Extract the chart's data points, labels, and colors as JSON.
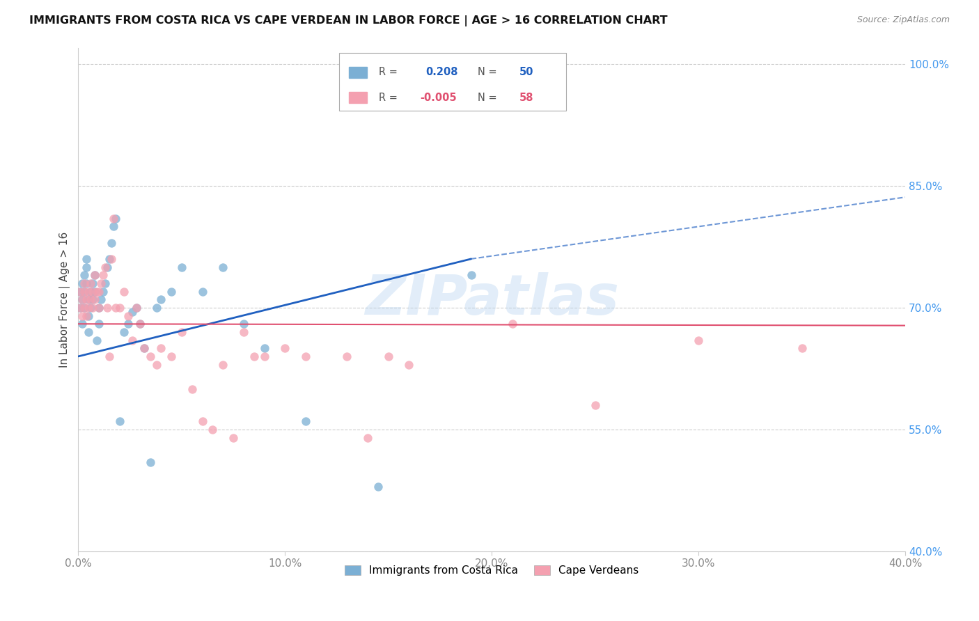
{
  "title": "IMMIGRANTS FROM COSTA RICA VS CAPE VERDEAN IN LABOR FORCE | AGE > 16 CORRELATION CHART",
  "source": "Source: ZipAtlas.com",
  "ylabel": "In Labor Force | Age > 16",
  "xlim": [
    0.0,
    0.4
  ],
  "ylim": [
    0.4,
    1.02
  ],
  "ytick_labels": [
    "40.0%",
    "55.0%",
    "70.0%",
    "85.0%",
    "100.0%"
  ],
  "ytick_values": [
    0.4,
    0.55,
    0.7,
    0.85,
    1.0
  ],
  "xtick_labels": [
    "0.0%",
    "10.0%",
    "20.0%",
    "30.0%",
    "40.0%"
  ],
  "xtick_values": [
    0.0,
    0.1,
    0.2,
    0.3,
    0.4
  ],
  "costa_rica_R": 0.208,
  "costa_rica_N": 50,
  "cape_verde_R": -0.005,
  "cape_verde_N": 58,
  "costa_rica_color": "#7bafd4",
  "cape_verde_color": "#f4a0b0",
  "trend_costa_rica_color": "#2060c0",
  "trend_cape_verde_color": "#e05070",
  "background_color": "#ffffff",
  "grid_color": "#cccccc",
  "watermark": "ZIPatlas",
  "costa_rica_x": [
    0.001,
    0.001,
    0.002,
    0.002,
    0.002,
    0.003,
    0.003,
    0.003,
    0.004,
    0.004,
    0.004,
    0.005,
    0.005,
    0.005,
    0.006,
    0.006,
    0.007,
    0.007,
    0.008,
    0.008,
    0.009,
    0.01,
    0.01,
    0.011,
    0.012,
    0.013,
    0.014,
    0.015,
    0.016,
    0.017,
    0.018,
    0.02,
    0.022,
    0.024,
    0.026,
    0.028,
    0.03,
    0.032,
    0.035,
    0.038,
    0.04,
    0.045,
    0.05,
    0.06,
    0.07,
    0.08,
    0.09,
    0.11,
    0.145,
    0.19
  ],
  "costa_rica_y": [
    0.72,
    0.7,
    0.73,
    0.71,
    0.68,
    0.74,
    0.72,
    0.7,
    0.75,
    0.73,
    0.76,
    0.71,
    0.69,
    0.67,
    0.72,
    0.7,
    0.73,
    0.71,
    0.74,
    0.72,
    0.66,
    0.68,
    0.7,
    0.71,
    0.72,
    0.73,
    0.75,
    0.76,
    0.78,
    0.8,
    0.81,
    0.56,
    0.67,
    0.68,
    0.695,
    0.7,
    0.68,
    0.65,
    0.51,
    0.7,
    0.71,
    0.72,
    0.75,
    0.72,
    0.75,
    0.68,
    0.65,
    0.56,
    0.48,
    0.74
  ],
  "cape_verde_x": [
    0.001,
    0.001,
    0.002,
    0.002,
    0.003,
    0.003,
    0.003,
    0.004,
    0.004,
    0.005,
    0.005,
    0.006,
    0.006,
    0.007,
    0.007,
    0.008,
    0.008,
    0.009,
    0.01,
    0.01,
    0.011,
    0.012,
    0.013,
    0.014,
    0.015,
    0.016,
    0.017,
    0.018,
    0.02,
    0.022,
    0.024,
    0.026,
    0.028,
    0.03,
    0.032,
    0.035,
    0.038,
    0.04,
    0.045,
    0.05,
    0.055,
    0.06,
    0.065,
    0.07,
    0.075,
    0.08,
    0.085,
    0.09,
    0.1,
    0.11,
    0.13,
    0.14,
    0.15,
    0.16,
    0.21,
    0.25,
    0.3,
    0.35
  ],
  "cape_verde_y": [
    0.72,
    0.7,
    0.71,
    0.69,
    0.73,
    0.7,
    0.72,
    0.71,
    0.69,
    0.72,
    0.7,
    0.73,
    0.71,
    0.72,
    0.7,
    0.74,
    0.71,
    0.72,
    0.7,
    0.72,
    0.73,
    0.74,
    0.75,
    0.7,
    0.64,
    0.76,
    0.81,
    0.7,
    0.7,
    0.72,
    0.69,
    0.66,
    0.7,
    0.68,
    0.65,
    0.64,
    0.63,
    0.65,
    0.64,
    0.67,
    0.6,
    0.56,
    0.55,
    0.63,
    0.54,
    0.67,
    0.64,
    0.64,
    0.65,
    0.64,
    0.64,
    0.54,
    0.64,
    0.63,
    0.68,
    0.58,
    0.66,
    0.65
  ],
  "cr_trend_x0": 0.0,
  "cr_trend_x1": 0.19,
  "cr_trend_x_dash": 0.4,
  "cr_trend_y0": 0.64,
  "cr_trend_y1": 0.76,
  "cr_trend_y_dash": 0.836,
  "cv_trend_y0": 0.68,
  "cv_trend_y1": 0.678
}
